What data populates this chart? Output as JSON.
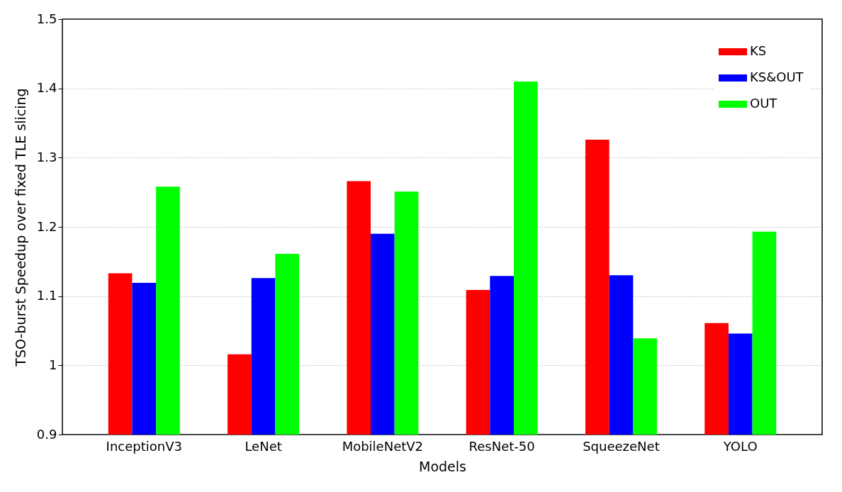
{
  "chart_data": {
    "type": "bar",
    "xlabel": "Models",
    "ylabel": "TSO-burst Speedup over fixed TLE slicing",
    "categories": [
      "InceptionV3",
      "LeNet",
      "MobileNetV2",
      "ResNet-50",
      "SqueezeNet",
      "YOLO"
    ],
    "series": [
      {
        "name": "KS",
        "color": "#ff0000",
        "values": [
          1.133,
          1.016,
          1.266,
          1.109,
          1.326,
          1.061
        ]
      },
      {
        "name": "KS&OUT",
        "color": "#0000ff",
        "values": [
          1.119,
          1.126,
          1.19,
          1.129,
          1.13,
          1.046
        ]
      },
      {
        "name": "OUT",
        "color": "#00ff00",
        "values": [
          1.258,
          1.161,
          1.251,
          1.41,
          1.039,
          1.193
        ]
      }
    ],
    "ylim": [
      0.9,
      1.5
    ],
    "yticks": [
      0.9,
      1,
      1.1,
      1.2,
      1.3,
      1.4,
      1.5
    ],
    "grid": "y",
    "legend": "top right"
  }
}
